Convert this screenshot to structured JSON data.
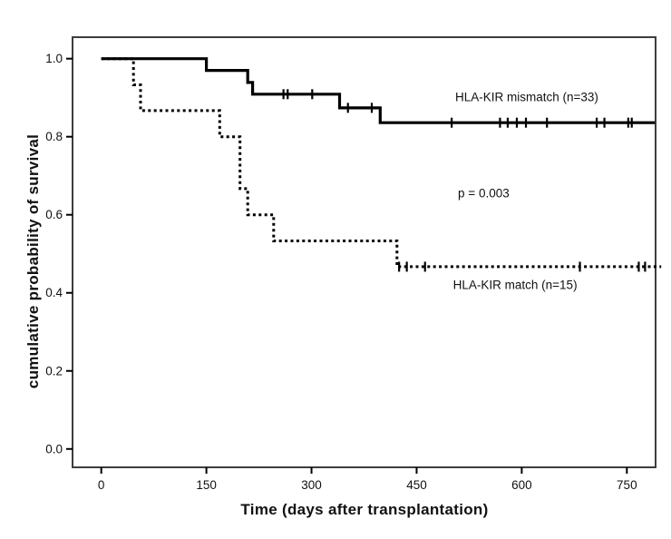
{
  "figure": {
    "background": "#ffffff",
    "ink_color": "#000000",
    "frame_color": "#3d3d3d"
  },
  "chart_data": {
    "type": "line",
    "variant": "kaplan_meier_step_survival",
    "title": "",
    "xlabel": "Time (days after transplantation)",
    "ylabel": "cumulative probability of survival",
    "xlim": [
      -41,
      791
    ],
    "ylim": [
      -0.047,
      1.055
    ],
    "grid": false,
    "legend_position": "inline-annotations",
    "xticks": [
      {
        "value": 0,
        "label": "0"
      },
      {
        "value": 150,
        "label": "150"
      },
      {
        "value": 300,
        "label": "300"
      },
      {
        "value": 450,
        "label": "450"
      },
      {
        "value": 600,
        "label": "600"
      },
      {
        "value": 750,
        "label": "750"
      }
    ],
    "yticks": [
      {
        "value": 0.0,
        "label": "0.0"
      },
      {
        "value": 0.2,
        "label": "0.2"
      },
      {
        "value": 0.4,
        "label": "0.4"
      },
      {
        "value": 0.6,
        "label": "0.6"
      },
      {
        "value": 0.8,
        "label": "0.8"
      },
      {
        "value": 1.0,
        "label": "1.0"
      }
    ],
    "series": [
      {
        "name": "HLA-KIR mismatch (n=33)",
        "line_style": "solid",
        "color": "#000000",
        "steps": [
          [
            0,
            1.0
          ],
          [
            150,
            0.97
          ],
          [
            209,
            0.939
          ],
          [
            216,
            0.909
          ],
          [
            340,
            0.874
          ],
          [
            398,
            0.836
          ]
        ],
        "end_x": 790,
        "censor_marks": [
          [
            260,
            0.909
          ],
          [
            266,
            0.909
          ],
          [
            301,
            0.909
          ],
          [
            352,
            0.874
          ],
          [
            386,
            0.874
          ],
          [
            500,
            0.836
          ],
          [
            569,
            0.836
          ],
          [
            580,
            0.836
          ],
          [
            593,
            0.836
          ],
          [
            606,
            0.836
          ],
          [
            636,
            0.836
          ],
          [
            707,
            0.836
          ],
          [
            718,
            0.836
          ],
          [
            752,
            0.836
          ],
          [
            757,
            0.836
          ]
        ]
      },
      {
        "name": "HLA-KIR match (n=15)",
        "line_style": "dotted",
        "color": "#000000",
        "steps": [
          [
            0,
            1.0
          ],
          [
            46,
            0.933
          ],
          [
            56,
            0.867
          ],
          [
            169,
            0.8
          ],
          [
            198,
            0.667
          ],
          [
            209,
            0.6
          ],
          [
            246,
            0.533
          ],
          [
            422,
            0.467
          ]
        ],
        "end_x": 799,
        "censor_marks": [
          [
            425,
            0.467
          ],
          [
            436,
            0.467
          ],
          [
            462,
            0.467
          ],
          [
            683,
            0.467
          ],
          [
            767,
            0.467
          ],
          [
            776,
            0.467
          ]
        ]
      }
    ],
    "annotations": [
      {
        "id": "label-mismatch",
        "text": "HLA-KIR mismatch (n=33)",
        "x": 505,
        "y": 0.901,
        "anchor": "start"
      },
      {
        "id": "label-pvalue",
        "text": "p = 0.003",
        "x": 509,
        "y": 0.655,
        "anchor": "start"
      },
      {
        "id": "label-match",
        "text": "HLA-KIR match (n=15)",
        "x": 502,
        "y": 0.42,
        "anchor": "start"
      }
    ]
  }
}
